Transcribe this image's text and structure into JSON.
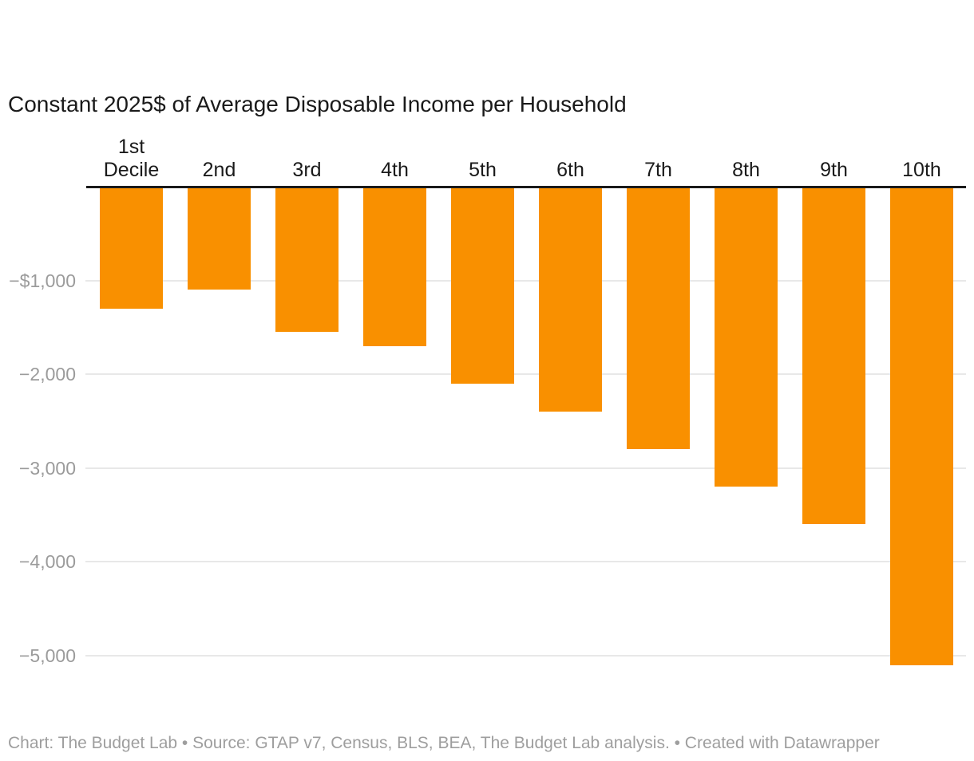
{
  "chart_data": {
    "type": "bar",
    "title": "Constant 2025$ of Average Disposable Income per Household",
    "categories": [
      "1st\nDecile",
      "2nd",
      "3rd",
      "4th",
      "5th",
      "6th",
      "7th",
      "8th",
      "9th",
      "10th"
    ],
    "values": [
      -1300,
      -1100,
      -1550,
      -1700,
      -2100,
      -2400,
      -2800,
      -3200,
      -3600,
      -5100
    ],
    "xlabel": "",
    "ylabel": "",
    "ylim": [
      -5500,
      0
    ],
    "grid": true,
    "legend": "none",
    "yticks": [
      {
        "v": -1000,
        "label": "−$1,000"
      },
      {
        "v": -2000,
        "label": "−2,000"
      },
      {
        "v": -3000,
        "label": "−3,000"
      },
      {
        "v": -4000,
        "label": "−4,000"
      },
      {
        "v": -5000,
        "label": "−5,000"
      }
    ],
    "bar_color": "#F99000",
    "colors": {
      "axis": "#1A1A1A",
      "grid": "#E8E8E8",
      "category_text": "#1A1A1A",
      "tick_text": "#9B9B9B",
      "footer_text": "#9E9E9E"
    }
  },
  "footer": {
    "text": "Chart: The Budget Lab • Source: GTAP v7, Census, BLS, BEA, The Budget Lab analysis. • Created with Datawrapper"
  }
}
